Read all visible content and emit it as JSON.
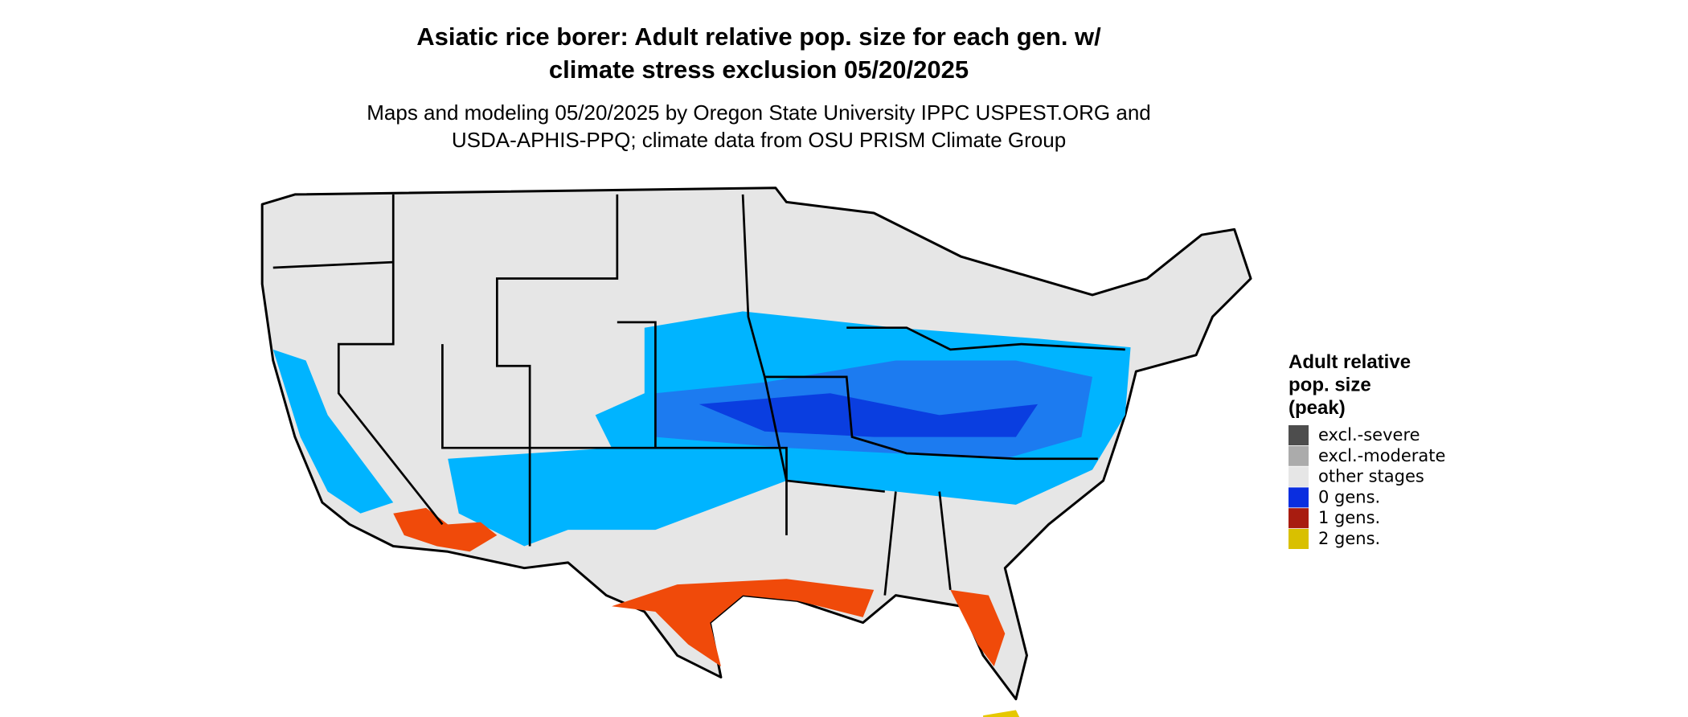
{
  "header": {
    "title_lines": [
      "Asiatic rice borer: Adult relative pop. size for each gen. w/",
      "climate stress exclusion 05/20/2025"
    ],
    "subtitle_lines": [
      "Maps and modeling 05/20/2025 by Oregon State University IPPC USPEST.ORG and",
      "USDA-APHIS-PPQ; climate data from OSU PRISM Climate Group"
    ]
  },
  "legend": {
    "title_lines": [
      "Adult relative",
      "pop. size",
      "(peak)"
    ],
    "items": [
      {
        "label": "excl.-severe",
        "color": "#4d4d4d"
      },
      {
        "label": "excl.-moderate",
        "color": "#ababab"
      },
      {
        "label": "other stages",
        "color": "#e6e6e6"
      },
      {
        "label": "0 gens.",
        "color": "#0a2ee0"
      },
      {
        "label": "1 gens.",
        "color": "#a81c10"
      },
      {
        "label": "2 gens.",
        "color": "#d9c000"
      }
    ]
  }
}
